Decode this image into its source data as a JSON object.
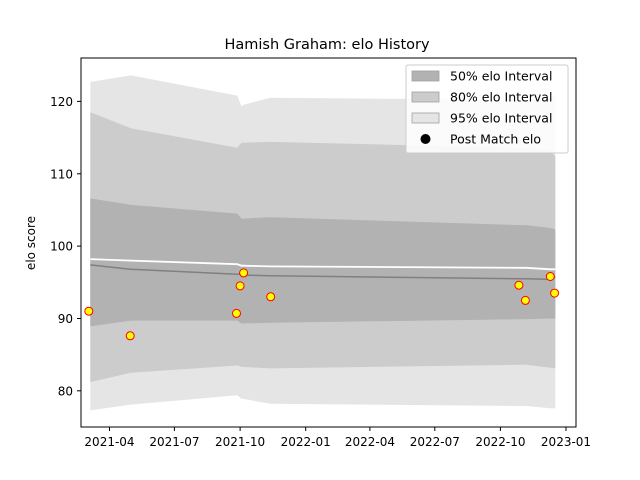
{
  "chart_data": {
    "type": "line",
    "title": "Hamish Graham: elo History",
    "xlabel": "",
    "ylabel": "elo score",
    "x_ticks": [
      "2021-04",
      "2021-07",
      "2021-10",
      "2022-01",
      "2022-04",
      "2022-07",
      "2022-10",
      "2023-01"
    ],
    "y_ticks": [
      80,
      90,
      100,
      110,
      120
    ],
    "xlim": [
      "2021-02-20",
      "2023-01-15"
    ],
    "ylim": [
      75.0,
      126.0
    ],
    "grid": false,
    "legend_position": "top-right",
    "legend": [
      {
        "label": "50% elo Interval",
        "kind": "band",
        "color": "#b2b2b2"
      },
      {
        "label": "80% elo Interval",
        "kind": "band",
        "color": "#cccccc"
      },
      {
        "label": "95% elo Interval",
        "kind": "band",
        "color": "#e5e5e5"
      },
      {
        "label": "Post Match elo",
        "kind": "marker",
        "color": "#000000"
      }
    ],
    "dates": [
      "2021-03-05",
      "2021-05-01",
      "2021-09-27",
      "2021-10-03",
      "2021-10-05",
      "2021-11-12",
      "2022-10-28",
      "2022-11-06",
      "2022-12-10",
      "2022-12-17"
    ],
    "bands": {
      "ci95_upper": [
        122.7,
        123.6,
        120.8,
        119.3,
        119.5,
        120.5,
        120.2,
        120.2,
        120.5,
        120.8
      ],
      "ci95_lower": [
        77.3,
        78.1,
        79.4,
        78.9,
        78.9,
        78.2,
        77.9,
        77.9,
        77.6,
        77.6
      ],
      "ci80_upper": [
        118.5,
        116.3,
        113.6,
        114.3,
        114.3,
        114.4,
        113.6,
        113.6,
        113.1,
        112.4
      ],
      "ci80_lower": [
        81.2,
        82.5,
        83.5,
        83.3,
        83.3,
        83.1,
        83.6,
        83.6,
        83.2,
        83.1
      ],
      "ci50_upper": [
        106.6,
        105.7,
        104.5,
        103.8,
        103.8,
        104.0,
        102.9,
        102.9,
        102.5,
        102.3
      ],
      "ci50_lower": [
        88.9,
        89.7,
        89.7,
        89.3,
        89.3,
        89.4,
        89.9,
        89.9,
        90.0,
        90.0
      ]
    },
    "series": [
      {
        "values": [
          97.4,
          96.8,
          96.1,
          96.1,
          96.0,
          95.9,
          95.5,
          95.5,
          95.4,
          95.7
        ],
        "color": "#808080"
      },
      {
        "values": [
          98.2,
          98.0,
          97.5,
          97.3,
          97.3,
          97.2,
          97.0,
          97.0,
          96.8,
          96.8
        ],
        "color": "#ffffff"
      }
    ],
    "post_match": {
      "dates": [
        "2021-03-03",
        "2021-04-30",
        "2021-09-26",
        "2021-10-01",
        "2021-10-06",
        "2021-11-13",
        "2022-10-27",
        "2022-11-05",
        "2022-12-10",
        "2022-12-16"
      ],
      "values": [
        91.0,
        87.6,
        90.7,
        94.5,
        96.3,
        93.0,
        94.6,
        92.5,
        95.8,
        93.5
      ],
      "fill": "#ffff00",
      "edge": "#ff0000"
    }
  }
}
